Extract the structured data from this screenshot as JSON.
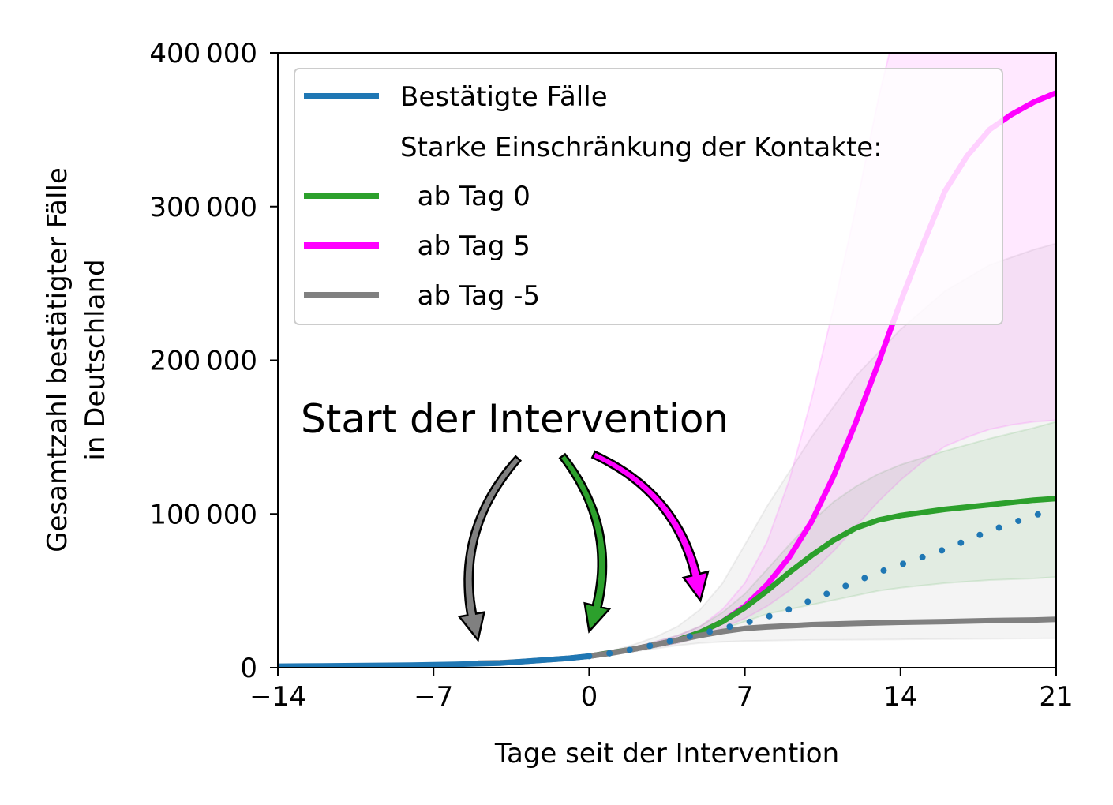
{
  "chart_data": {
    "type": "line",
    "xlabel": "Tage seit der Intervention",
    "ylabel_line1": "Gesamtzahl bestätigter Fälle",
    "ylabel_line2": "in Deutschland",
    "xlim": [
      -14,
      21
    ],
    "ylim": [
      0,
      400000
    ],
    "xticks": [
      -14,
      -7,
      0,
      7,
      14,
      21
    ],
    "xtick_labels": [
      "−14",
      "−7",
      "0",
      "7",
      "14",
      "21"
    ],
    "yticks": [
      0,
      100000,
      200000,
      300000,
      400000
    ],
    "ytick_labels": [
      "0",
      "100 000",
      "200 000",
      "300 000",
      "400 000"
    ],
    "legend": {
      "placement": "upper-left",
      "entries": [
        {
          "label": "Bestätigte Fälle",
          "color": "#1f77b4"
        },
        {
          "label": "Starke Einschränkung der Kontakte:",
          "color": null
        },
        {
          "label": "  ab Tag 0",
          "color": "#2ca02c"
        },
        {
          "label": "  ab Tag 5",
          "color": "#ff00ff"
        },
        {
          "label": "  ab Tag -5",
          "color": "#808080"
        }
      ]
    },
    "annotation": {
      "text": "Start der Intervention",
      "arrow_targets": [
        {
          "x": -5,
          "color": "#808080"
        },
        {
          "x": 0,
          "color": "#2ca02c"
        },
        {
          "x": 5,
          "color": "#ff00ff"
        }
      ]
    },
    "series": [
      {
        "name": "Bestätigte Fälle",
        "color": "#1f77b4",
        "style": "solid",
        "x": [
          -14,
          -12,
          -10,
          -8,
          -6,
          -4,
          -3,
          -2,
          -1,
          0
        ],
        "y": [
          1000,
          1200,
          1400,
          1700,
          2200,
          3000,
          4000,
          5000,
          6000,
          7500
        ]
      },
      {
        "name": "Bestätigte Fälle (Prognose)",
        "color": "#1f77b4",
        "style": "dotted",
        "x": [
          0,
          1,
          2,
          3,
          4,
          5,
          6,
          7,
          8,
          9,
          10,
          11,
          12,
          13,
          14,
          15,
          16,
          17,
          18,
          19,
          20,
          21
        ],
        "y": [
          7500,
          9500,
          12000,
          15000,
          18500,
          22000,
          25500,
          29000,
          33000,
          38000,
          44000,
          50000,
          56000,
          62000,
          67000,
          72000,
          77000,
          83000,
          89000,
          94000,
          99000,
          103000
        ]
      },
      {
        "name": "ab Tag 0",
        "color": "#2ca02c",
        "style": "solid",
        "x": [
          0,
          2,
          4,
          5,
          6,
          7,
          8,
          9,
          10,
          11,
          12,
          13,
          14,
          16,
          18,
          20,
          21
        ],
        "y": [
          7500,
          12000,
          18000,
          23000,
          30000,
          39000,
          50000,
          62000,
          73000,
          83000,
          91000,
          96000,
          99000,
          103000,
          106000,
          109000,
          110000
        ],
        "band_low": [
          7500,
          11000,
          16000,
          20000,
          25000,
          30000,
          35000,
          38000,
          41000,
          44000,
          47000,
          50000,
          52000,
          55000,
          57000,
          58000,
          59000
        ],
        "band_high": [
          7500,
          13000,
          21000,
          27000,
          36000,
          48000,
          64000,
          80000,
          95000,
          108000,
          118000,
          126000,
          132000,
          141000,
          149000,
          156000,
          160000
        ]
      },
      {
        "name": "ab Tag 5",
        "color": "#ff00ff",
        "style": "solid",
        "x": [
          0,
          2,
          4,
          5,
          6,
          7,
          8,
          9,
          10,
          11,
          12,
          13,
          14,
          15,
          16,
          17,
          18,
          19,
          20,
          21
        ],
        "y": [
          7500,
          12000,
          18000,
          23000,
          30000,
          40000,
          54000,
          72000,
          95000,
          125000,
          160000,
          198000,
          238000,
          275000,
          310000,
          333000,
          350000,
          360000,
          368000,
          374000
        ],
        "band_low": [
          7500,
          11000,
          16000,
          20000,
          26000,
          32000,
          40000,
          50000,
          62000,
          76000,
          92000,
          108000,
          122000,
          134000,
          144000,
          150000,
          155000,
          158000,
          160000,
          161000
        ],
        "band_high": [
          7500,
          13000,
          21000,
          27000,
          38000,
          55000,
          82000,
          122000,
          175000,
          235000,
          300000,
          370000,
          430000,
          480000,
          520000,
          550000,
          575000,
          590000,
          600000,
          610000
        ]
      },
      {
        "name": "ab Tag -5",
        "color": "#808080",
        "style": "solid",
        "x": [
          -5,
          -4,
          -3,
          -2,
          -1,
          0,
          1,
          2,
          3,
          4,
          5,
          6,
          7,
          8,
          10,
          12,
          14,
          16,
          18,
          20,
          21
        ],
        "y": [
          3000,
          3200,
          4000,
          5000,
          6000,
          7500,
          9500,
          12000,
          15000,
          18000,
          21000,
          23500,
          25500,
          26500,
          28000,
          28800,
          29500,
          30000,
          30600,
          31000,
          31500
        ],
        "band_low": [
          3000,
          3100,
          3800,
          4700,
          5600,
          7000,
          8500,
          10500,
          12500,
          14500,
          16000,
          16800,
          17300,
          17600,
          18000,
          18200,
          18400,
          18600,
          18800,
          19000,
          19100
        ],
        "band_high": [
          3000,
          3300,
          4200,
          5400,
          6600,
          8200,
          11000,
          15000,
          20000,
          27000,
          38000,
          55000,
          80000,
          105000,
          150000,
          190000,
          220000,
          245000,
          262000,
          272000,
          276000
        ]
      }
    ]
  }
}
